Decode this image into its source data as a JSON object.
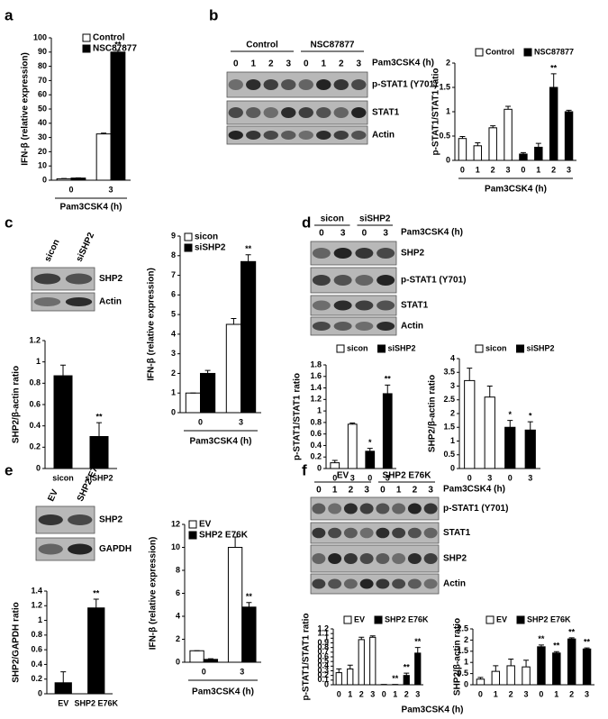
{
  "panels": [
    "a",
    "b",
    "c",
    "d",
    "e",
    "f"
  ],
  "blots": [
    {
      "groups": [
        "Control",
        "NSC87877"
      ],
      "lanes": [
        "0",
        "1",
        "2",
        "3",
        "0",
        "1",
        "2",
        "3"
      ],
      "treatment": "Pam3CSK4 (h)",
      "rows": [
        "p-STAT1 (Y701)",
        "STAT1",
        "Actin"
      ]
    },
    {
      "lanes": [
        "sicon",
        "siSHP2"
      ],
      "rows": [
        "SHP2",
        "Actin"
      ]
    },
    {
      "groups": [
        "sicon",
        "siSHP2"
      ],
      "lanes": [
        "0",
        "3",
        "0",
        "3"
      ],
      "treatment": "Pam3CSK4 (h)",
      "rows": [
        "SHP2",
        "p-STAT1 (Y701)",
        "STAT1",
        "Actin"
      ]
    },
    {
      "lanes": [
        "EV",
        "SHP2 E76K"
      ],
      "rows": [
        "SHP2",
        "GAPDH"
      ]
    },
    {
      "groups": [
        "EV",
        "SHP2 E76K"
      ],
      "lanes": [
        "0",
        "1",
        "2",
        "3",
        "0",
        "1",
        "2",
        "3"
      ],
      "treatment": "Pam3CSK4 (h)",
      "rows": [
        "p-STAT1 (Y701)",
        "STAT1",
        "SHP2",
        "Actin"
      ]
    }
  ],
  "chart_data": [
    {
      "type": "bar",
      "categories": [
        "0",
        "3"
      ],
      "xlabel": "Pam3CSK4 (h)",
      "ylabel": "IFN-β (relative expression)",
      "ylim": [
        0,
        100
      ],
      "yticks": [
        0,
        10,
        20,
        30,
        40,
        50,
        60,
        70,
        80,
        90,
        100
      ],
      "series": [
        {
          "name": "Control",
          "color": "#ffffff",
          "values": [
            1,
            32.5
          ],
          "errors": [
            0.2,
            0.6
          ]
        },
        {
          "name": "NSC87877",
          "color": "#000000",
          "values": [
            1.5,
            90
          ],
          "errors": [
            0.2,
            1.2
          ],
          "significance": [
            null,
            "**"
          ]
        }
      ]
    },
    {
      "type": "bar",
      "categories": [
        "0",
        "1",
        "2",
        "3",
        "0",
        "1",
        "2",
        "3"
      ],
      "xlabel": "Pam3CSK4 (h)",
      "ylabel": "p-STAT1/STAT1 ratio",
      "ylim": [
        0,
        2
      ],
      "yticks": [
        0,
        0.5,
        1,
        1.5,
        2
      ],
      "series": [
        {
          "name": "Control",
          "color": "#ffffff",
          "values": [
            0.45,
            0.3,
            0.67,
            1.05,
            null,
            null,
            null,
            null
          ],
          "errors": [
            0.04,
            0.06,
            0.04,
            0.06,
            null,
            null,
            null,
            null
          ]
        },
        {
          "name": "NSC87877",
          "color": "#000000",
          "values": [
            null,
            null,
            null,
            null,
            0.13,
            0.27,
            1.5,
            1.0
          ],
          "errors": [
            null,
            null,
            null,
            null,
            0.03,
            0.08,
            0.28,
            0.03
          ],
          "significance": [
            null,
            null,
            null,
            null,
            null,
            null,
            "**",
            null
          ]
        }
      ]
    },
    {
      "type": "bar",
      "categories": [
        "sicon",
        "siSHP2"
      ],
      "ylabel": "SHP2/β-actin ratio",
      "ylim": [
        0,
        1.2
      ],
      "yticks": [
        0,
        0.2,
        0.4,
        0.6,
        0.8,
        1,
        1.2
      ],
      "color": "#000000",
      "values": [
        0.87,
        0.3
      ],
      "errors": [
        0.1,
        0.13
      ],
      "significance": [
        null,
        "**"
      ]
    },
    {
      "type": "bar",
      "categories": [
        "0",
        "3"
      ],
      "xlabel": "Pam3CSK4 (h)",
      "ylabel": "IFN-β (relative expression)",
      "ylim": [
        0,
        9
      ],
      "yticks": [
        0,
        1,
        2,
        3,
        4,
        5,
        6,
        7,
        8,
        9
      ],
      "series": [
        {
          "name": "sicon",
          "color": "#ffffff",
          "values": [
            1,
            4.5
          ],
          "errors": [
            0,
            0.3
          ]
        },
        {
          "name": "siSHP2",
          "color": "#000000",
          "values": [
            2,
            7.7
          ],
          "errors": [
            0.15,
            0.35
          ],
          "significance": [
            null,
            "**"
          ]
        }
      ]
    },
    {
      "type": "bar",
      "categories": [
        "0",
        "3",
        "0",
        "3"
      ],
      "ylabel": "p-STAT1/STAT1 ratio",
      "ylim": [
        0,
        1.8
      ],
      "yticks": [
        0,
        0.2,
        0.4,
        0.6,
        0.8,
        1,
        1.2,
        1.4,
        1.6,
        1.8
      ],
      "series": [
        {
          "name": "sicon",
          "color": "#ffffff",
          "values": [
            0.1,
            0.77,
            null,
            null
          ],
          "errors": [
            0.04,
            0.02,
            null,
            null
          ]
        },
        {
          "name": "siSHP2",
          "color": "#000000",
          "values": [
            null,
            null,
            0.3,
            1.3
          ],
          "errors": [
            null,
            null,
            0.05,
            0.15
          ],
          "significance": [
            null,
            null,
            "*",
            "**"
          ]
        }
      ]
    },
    {
      "type": "bar",
      "categories": [
        "0",
        "3",
        "0",
        "3"
      ],
      "ylabel": "SHP2/β-actin ratio",
      "ylim": [
        0,
        4
      ],
      "yticks": [
        0,
        0.5,
        1,
        1.5,
        2,
        2.5,
        3,
        3.5,
        4
      ],
      "series": [
        {
          "name": "sicon",
          "color": "#ffffff",
          "values": [
            3.2,
            2.6,
            null,
            null
          ],
          "errors": [
            0.45,
            0.4,
            null,
            null
          ]
        },
        {
          "name": "siSHP2",
          "color": "#000000",
          "values": [
            null,
            null,
            1.5,
            1.4
          ],
          "errors": [
            null,
            null,
            0.25,
            0.3
          ],
          "significance": [
            null,
            null,
            "*",
            "*"
          ]
        }
      ]
    },
    {
      "type": "bar",
      "categories": [
        "EV",
        "SHP2 E76K"
      ],
      "ylabel": "SHP2/GAPDH ratio",
      "ylim": [
        0,
        1.4
      ],
      "yticks": [
        0,
        0.2,
        0.4,
        0.6,
        0.8,
        1,
        1.2,
        1.4
      ],
      "color": "#000000",
      "values": [
        0.15,
        1.17
      ],
      "errors": [
        0.15,
        0.12
      ],
      "significance": [
        null,
        "**"
      ]
    },
    {
      "type": "bar",
      "categories": [
        "0",
        "3"
      ],
      "xlabel": "Pam3CSK4 (h)",
      "ylabel": "IFN-β (relative expression)",
      "ylim": [
        0,
        12
      ],
      "yticks": [
        0,
        2,
        4,
        6,
        8,
        10,
        12
      ],
      "series": [
        {
          "name": "EV",
          "color": "#ffffff",
          "values": [
            1,
            10
          ],
          "errors": [
            0,
            0.9
          ]
        },
        {
          "name": "SHP2 E76K",
          "color": "#000000",
          "values": [
            0.25,
            4.8
          ],
          "errors": [
            0.05,
            0.4
          ],
          "significance": [
            null,
            "**"
          ]
        }
      ]
    },
    {
      "type": "bar",
      "categories": [
        "0",
        "1",
        "2",
        "3",
        "0",
        "1",
        "2",
        "3"
      ],
      "xlabel": "Pam3CSK4 (h)",
      "ylabel": "p-STAT1/STAT1 ratio",
      "ylim": [
        0,
        1.2
      ],
      "yticks": [
        0,
        0.1,
        0.2,
        0.3,
        0.4,
        0.5,
        0.6,
        0.7,
        0.8,
        0.9,
        1,
        1.1,
        1.2
      ],
      "series": [
        {
          "name": "EV",
          "color": "#ffffff",
          "values": [
            0.26,
            0.34,
            0.97,
            1.02,
            null,
            null,
            null,
            null
          ],
          "errors": [
            0.08,
            0.08,
            0.05,
            0.03,
            null,
            null,
            null,
            null
          ]
        },
        {
          "name": "SHP2 E76K",
          "color": "#000000",
          "values": [
            null,
            null,
            null,
            null,
            0.005,
            0.005,
            0.2,
            0.68
          ],
          "errors": [
            null,
            null,
            null,
            null,
            0,
            0,
            0.05,
            0.12
          ],
          "significance": [
            null,
            null,
            null,
            null,
            null,
            "**",
            "**",
            "**"
          ]
        }
      ]
    },
    {
      "type": "bar",
      "categories": [
        "0",
        "1",
        "2",
        "3",
        "0",
        "1",
        "2",
        "3"
      ],
      "ylabel": "SHP2/β-actin ratio",
      "ylim": [
        0,
        2.5
      ],
      "yticks": [
        0,
        0.5,
        1,
        1.5,
        2,
        2.5
      ],
      "series": [
        {
          "name": "EV",
          "color": "#ffffff",
          "values": [
            0.25,
            0.6,
            0.85,
            0.8,
            null,
            null,
            null,
            null
          ],
          "errors": [
            0.08,
            0.25,
            0.3,
            0.3,
            null,
            null,
            null,
            null
          ]
        },
        {
          "name": "SHP2 E76K",
          "color": "#000000",
          "values": [
            null,
            null,
            null,
            null,
            1.7,
            1.42,
            2.05,
            1.6
          ],
          "errors": [
            null,
            null,
            null,
            null,
            0.08,
            0.06,
            0.05,
            0.05
          ],
          "significance": [
            null,
            null,
            null,
            null,
            "**",
            "**",
            "**",
            "**"
          ]
        }
      ]
    }
  ]
}
